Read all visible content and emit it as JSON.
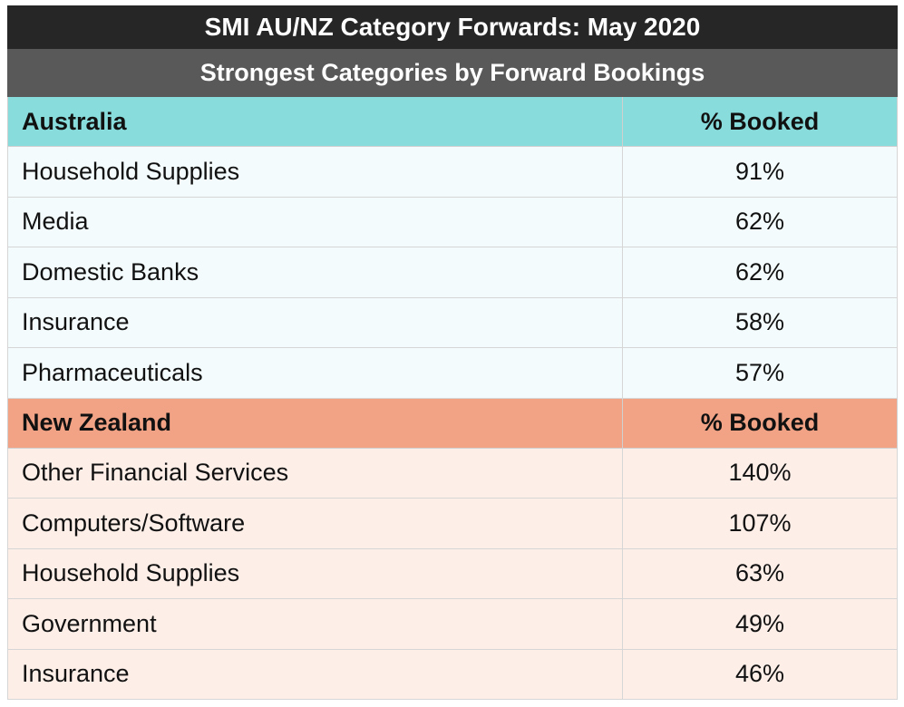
{
  "title": "SMI AU/NZ Category Forwards: May 2020",
  "subtitle": "Strongest Categories by Forward Bookings",
  "sections": [
    {
      "region": "Australia",
      "value_header": "% Booked",
      "rows": [
        {
          "category": "Household Supplies",
          "booked": "91%"
        },
        {
          "category": "Media",
          "booked": "62%"
        },
        {
          "category": "Domestic Banks",
          "booked": "62%"
        },
        {
          "category": "Insurance",
          "booked": "58%"
        },
        {
          "category": "Pharmaceuticals",
          "booked": "57%"
        }
      ]
    },
    {
      "region": "New Zealand",
      "value_header": "% Booked",
      "rows": [
        {
          "category": "Other Financial Services",
          "booked": "140%"
        },
        {
          "category": "Computers/Software",
          "booked": "107%"
        },
        {
          "category": "Household Supplies",
          "booked": "63%"
        },
        {
          "category": "Government",
          "booked": "49%"
        },
        {
          "category": "Insurance",
          "booked": "46%"
        }
      ]
    }
  ],
  "colors": {
    "title_bg": "#262626",
    "subtitle_bg": "#595959",
    "australia_header": "#88dcdc",
    "australia_rows": "#f3fbfc",
    "new_zealand_header": "#f2a385",
    "new_zealand_rows": "#fdeee8"
  }
}
